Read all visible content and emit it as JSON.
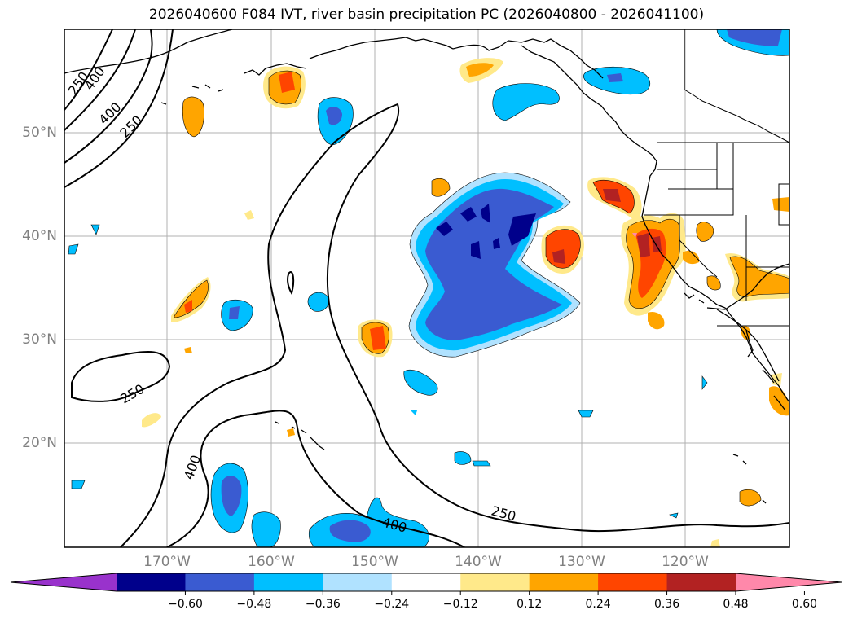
{
  "title": "2026040600 F084 IVT, river basin precipitation PC (2026040800 - 2026041100)",
  "map": {
    "lat_labels": [
      "50°N",
      "40°N",
      "30°N",
      "20°N"
    ],
    "lon_labels": [
      "170°W",
      "160°W",
      "150°W",
      "140°W",
      "130°W",
      "120°W"
    ],
    "contour_labels": [
      {
        "text": "250"
      },
      {
        "text": "400"
      },
      {
        "text": "400"
      },
      {
        "text": "250"
      },
      {
        "text": "250"
      },
      {
        "text": "400"
      },
      {
        "text": "400"
      },
      {
        "text": "250"
      }
    ]
  },
  "colorbar": {
    "ticks": [
      "−0.60",
      "−0.48",
      "−0.36",
      "−0.24",
      "−0.12",
      "0.12",
      "0.24",
      "0.36",
      "0.48",
      "0.60"
    ],
    "colors": [
      "#9932cc",
      "#00008b",
      "#3a5bd1",
      "#00bfff",
      "#b0e2ff",
      "#ffffff",
      "#ffe98a",
      "#ffa500",
      "#ff4500",
      "#b22222",
      "#ff88aa"
    ]
  },
  "colors": {
    "neg_strong": "#00008b",
    "neg_mid": "#3a5bd1",
    "neg": "#00bfff",
    "neg_light": "#b0e2ff",
    "pos_light": "#ffe98a",
    "pos": "#ffa500",
    "pos_mid": "#ff4500",
    "pos_strong": "#b22222",
    "pos_extreme": "#ff88aa"
  }
}
